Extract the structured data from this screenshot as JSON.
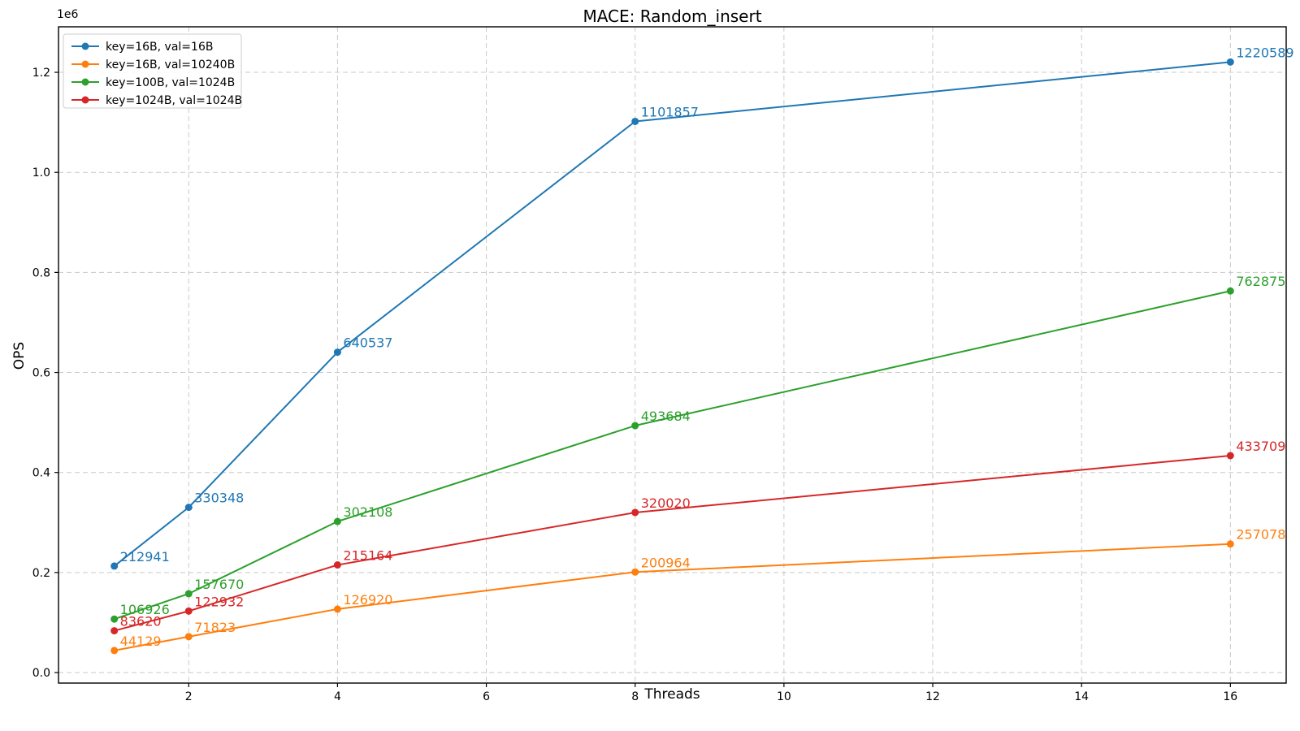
{
  "chart_data": {
    "type": "line",
    "title": "MACE: Random_insert",
    "xlabel": "Threads",
    "ylabel": "OPS",
    "y_axis_offset_text": "1e6",
    "grid": true,
    "grid_style": "dashed",
    "legend_position": "upper left",
    "x": [
      1,
      2,
      4,
      8,
      16
    ],
    "xlim": [
      0.25,
      16.75
    ],
    "ylim": [
      -21000,
      1291000
    ],
    "xticks": [
      2,
      4,
      6,
      8,
      10,
      12,
      14,
      16
    ],
    "xtick_labels": [
      "2",
      "4",
      "6",
      "8",
      "10",
      "12",
      "14",
      "16"
    ],
    "yticks": [
      0,
      200000,
      400000,
      600000,
      800000,
      1000000,
      1200000
    ],
    "ytick_labels": [
      "0.0",
      "0.2",
      "0.4",
      "0.6",
      "0.8",
      "1.0",
      "1.2"
    ],
    "series": [
      {
        "name": "key=16B, val=16B",
        "color": "#1f77b4",
        "values": [
          212941,
          330348,
          640537,
          1101857,
          1220589
        ],
        "point_labels": [
          "212941",
          "330348",
          "640537",
          "1101857",
          "1220589"
        ]
      },
      {
        "name": "key=16B, val=10240B",
        "color": "#ff7f0e",
        "values": [
          44129,
          71823,
          126920,
          200964,
          257078
        ],
        "point_labels": [
          "44129",
          "71823",
          "126920",
          "200964",
          "257078"
        ]
      },
      {
        "name": "key=100B, val=1024B",
        "color": "#2ca02c",
        "values": [
          106926,
          157670,
          302108,
          493684,
          762875
        ],
        "point_labels": [
          "106926",
          "157670",
          "302108",
          "493684",
          "762875"
        ]
      },
      {
        "name": "key=1024B, val=1024B",
        "color": "#d62728",
        "values": [
          83620,
          122932,
          215164,
          320020,
          433709
        ],
        "point_labels": [
          "83620",
          "122932",
          "215164",
          "320020",
          "433709"
        ]
      }
    ],
    "style": {
      "grid_color": "#c9c9c9",
      "spine_color": "#000000",
      "tick_label_color": "#000000",
      "legend_border_color": "#cccccc",
      "legend_background": "#ffffff"
    }
  }
}
